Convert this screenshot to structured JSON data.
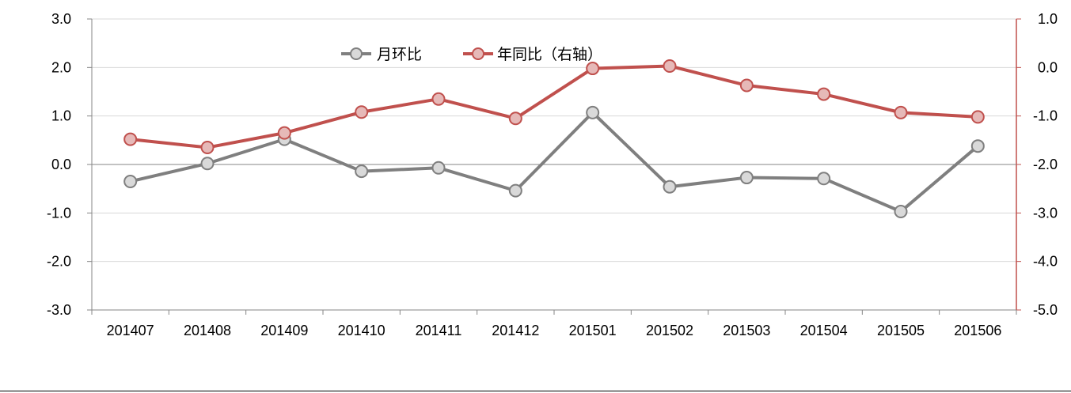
{
  "chart_data": {
    "type": "line",
    "categories": [
      "201407",
      "201408",
      "201409",
      "201410",
      "201411",
      "201412",
      "201501",
      "201502",
      "201503",
      "201504",
      "201505",
      "201506"
    ],
    "series": [
      {
        "name": "月环比",
        "axis": "left",
        "color": "#7f7f7f",
        "values": [
          -0.35,
          0.02,
          0.52,
          -0.14,
          -0.07,
          -0.54,
          1.07,
          -0.46,
          -0.27,
          -0.29,
          -0.97,
          0.38
        ]
      },
      {
        "name": "年同比（右轴）",
        "axis": "right",
        "color": "#c0504d",
        "values": [
          -1.48,
          -1.65,
          -1.35,
          -0.92,
          -0.65,
          -1.05,
          -0.02,
          0.03,
          -0.37,
          -0.55,
          -0.93,
          -1.02
        ]
      }
    ],
    "y_left": {
      "ylim": [
        -3.0,
        3.0
      ],
      "ticks": [
        "3.0",
        "2.0",
        "1.0",
        "0.0",
        "-1.0",
        "-2.0",
        "-3.0"
      ]
    },
    "y_right": {
      "ylim": [
        -5.0,
        1.0
      ],
      "ticks": [
        "1.0",
        "0.0",
        "-1.0",
        "-2.0",
        "-3.0",
        "-4.0",
        "-5.0"
      ],
      "color": "#c0504d"
    },
    "grid": true,
    "legend": "top-center"
  }
}
